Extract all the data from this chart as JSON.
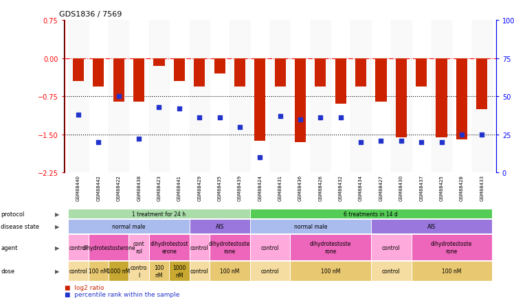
{
  "title": "GDS1836 / 7569",
  "samples": [
    "GSM88440",
    "GSM88442",
    "GSM88422",
    "GSM88438",
    "GSM88423",
    "GSM88441",
    "GSM88429",
    "GSM88435",
    "GSM88439",
    "GSM88424",
    "GSM88431",
    "GSM88436",
    "GSM88426",
    "GSM88432",
    "GSM88434",
    "GSM88427",
    "GSM88430",
    "GSM88437",
    "GSM88425",
    "GSM88428",
    "GSM88433"
  ],
  "log2_ratio": [
    -0.45,
    -0.55,
    -0.85,
    -0.85,
    -0.15,
    -0.45,
    -0.55,
    -0.3,
    -0.55,
    -1.62,
    -0.55,
    -1.65,
    -0.55,
    -0.9,
    -0.55,
    -0.85,
    -1.55,
    -0.55,
    -1.55,
    -1.6,
    -1.0
  ],
  "percentile": [
    38,
    20,
    50,
    22,
    43,
    42,
    36,
    36,
    30,
    10,
    37,
    35,
    36,
    36,
    20,
    21,
    21,
    20,
    20,
    25,
    25
  ],
  "ylim_left": [
    -2.25,
    0.75
  ],
  "ylim_right": [
    0,
    100
  ],
  "yticks_left": [
    0.75,
    0,
    -0.75,
    -1.5,
    -2.25
  ],
  "yticks_right": [
    100,
    75,
    50,
    25,
    0
  ],
  "hline_positions": [
    -0.75,
    -1.5
  ],
  "bar_color": "#cc2200",
  "dot_color": "#2233cc",
  "protocol_groups": [
    {
      "label": "1 treatment for 24 h",
      "start": 0,
      "end": 9,
      "color": "#aaddaa"
    },
    {
      "label": "6 treatments in 14 d",
      "start": 9,
      "end": 21,
      "color": "#55cc55"
    }
  ],
  "disease_groups": [
    {
      "label": "normal male",
      "start": 0,
      "end": 6,
      "color": "#aabbee"
    },
    {
      "label": "AIS",
      "start": 6,
      "end": 9,
      "color": "#9977dd"
    },
    {
      "label": "normal male",
      "start": 9,
      "end": 15,
      "color": "#aabbee"
    },
    {
      "label": "AIS",
      "start": 15,
      "end": 21,
      "color": "#9977dd"
    }
  ],
  "agent_groups": [
    {
      "label": "control",
      "start": 0,
      "end": 1,
      "color": "#ffaadd"
    },
    {
      "label": "dihydrotestosterone",
      "start": 1,
      "end": 3,
      "color": "#ee66bb"
    },
    {
      "label": "cont\nrol",
      "start": 3,
      "end": 4,
      "color": "#ffaadd"
    },
    {
      "label": "dihydrotestost\nerone",
      "start": 4,
      "end": 6,
      "color": "#ee66bb"
    },
    {
      "label": "control",
      "start": 6,
      "end": 7,
      "color": "#ffaadd"
    },
    {
      "label": "dihydrotestoste\nrone",
      "start": 7,
      "end": 9,
      "color": "#ee66bb"
    },
    {
      "label": "control",
      "start": 9,
      "end": 11,
      "color": "#ffaadd"
    },
    {
      "label": "dihydrotestoste\nrone",
      "start": 11,
      "end": 15,
      "color": "#ee66bb"
    },
    {
      "label": "control",
      "start": 15,
      "end": 17,
      "color": "#ffaadd"
    },
    {
      "label": "dihydrotestoste\nrone",
      "start": 17,
      "end": 21,
      "color": "#ee66bb"
    }
  ],
  "dose_groups": [
    {
      "label": "control",
      "start": 0,
      "end": 1,
      "color": "#f5dca0"
    },
    {
      "label": "100 nM",
      "start": 1,
      "end": 2,
      "color": "#e8c870"
    },
    {
      "label": "1000 nM",
      "start": 2,
      "end": 3,
      "color": "#c8a830"
    },
    {
      "label": "contro\nl",
      "start": 3,
      "end": 4,
      "color": "#f5dca0"
    },
    {
      "label": "100\nnM",
      "start": 4,
      "end": 5,
      "color": "#e8c870"
    },
    {
      "label": "1000\nnM",
      "start": 5,
      "end": 6,
      "color": "#c8a830"
    },
    {
      "label": "control",
      "start": 6,
      "end": 7,
      "color": "#f5dca0"
    },
    {
      "label": "100 nM",
      "start": 7,
      "end": 9,
      "color": "#e8c870"
    },
    {
      "label": "control",
      "start": 9,
      "end": 11,
      "color": "#f5dca0"
    },
    {
      "label": "100 nM",
      "start": 11,
      "end": 15,
      "color": "#e8c870"
    },
    {
      "label": "control",
      "start": 15,
      "end": 17,
      "color": "#f5dca0"
    },
    {
      "label": "100 nM",
      "start": 17,
      "end": 21,
      "color": "#e8c870"
    }
  ],
  "row_labels": [
    "protocol",
    "disease state",
    "agent",
    "dose"
  ],
  "legend_items": [
    {
      "label": "log2 ratio",
      "color": "#cc2200"
    },
    {
      "label": "percentile rank within the sample",
      "color": "#2233cc"
    }
  ]
}
